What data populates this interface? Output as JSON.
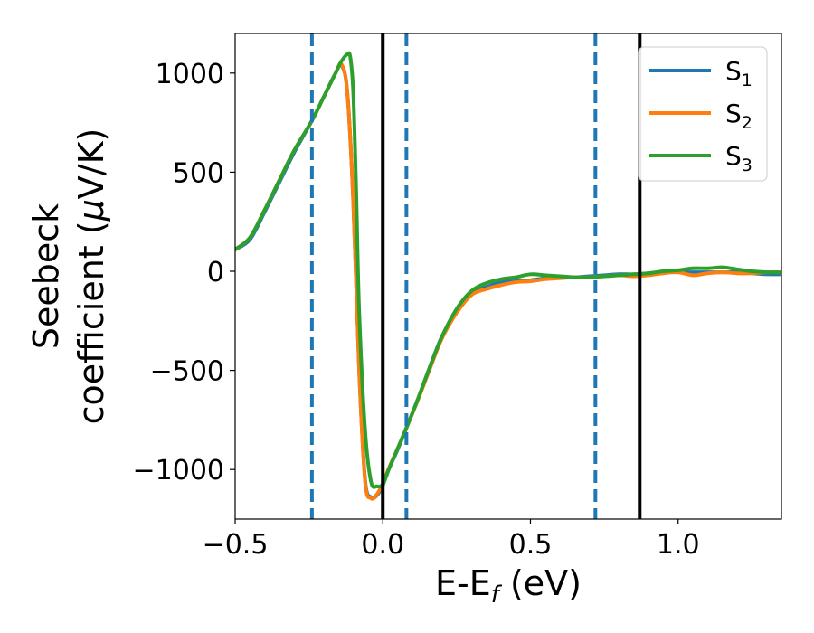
{
  "chart_data": {
    "type": "line",
    "title": "",
    "xlabel": "E-E",
    "xlabel_sub": "f",
    "xlabel_unit": " (eV)",
    "ylabel_line1": "Seebeck",
    "ylabel_line2_prefix": "coefficient  (",
    "ylabel_mu": "μ",
    "ylabel_line2_suffix": "V/K)",
    "xlim": [
      -0.5,
      1.35
    ],
    "ylim": [
      -1250,
      1200
    ],
    "x_ticks": [
      -0.5,
      0.0,
      0.5,
      1.0
    ],
    "x_tick_labels": [
      "−0.5",
      "0.0",
      "0.5",
      "1.0"
    ],
    "y_ticks": [
      -1000,
      -500,
      0,
      500,
      1000
    ],
    "y_tick_labels": [
      "−1000",
      "−500",
      "0",
      "500",
      "1000"
    ],
    "grid": false,
    "legend_position": "top-right",
    "vertical_lines_solid": [
      0.0,
      0.87
    ],
    "vertical_lines_dashed": [
      -0.24,
      0.08,
      0.72
    ],
    "colors": {
      "S1": "#1f77b4",
      "S2": "#ff7f0e",
      "S3": "#2ca02c",
      "solid_line": "#000000",
      "dashed_line": "#1f77b4"
    },
    "series": [
      {
        "name": "S1",
        "label_main": "S",
        "label_sub": "1",
        "color": "#1f77b4",
        "x": [
          -0.5,
          -0.45,
          -0.4,
          -0.35,
          -0.3,
          -0.24,
          -0.2,
          -0.16,
          -0.14,
          -0.12,
          -0.1,
          -0.08,
          -0.06,
          -0.04,
          -0.02,
          0.0,
          0.02,
          0.05,
          0.08,
          0.12,
          0.16,
          0.2,
          0.25,
          0.3,
          0.35,
          0.4,
          0.45,
          0.5,
          0.55,
          0.6,
          0.65,
          0.7,
          0.75,
          0.8,
          0.85,
          0.9,
          0.95,
          1.0,
          1.05,
          1.1,
          1.15,
          1.2,
          1.25,
          1.3,
          1.35
        ],
        "y": [
          110,
          160,
          300,
          450,
          600,
          760,
          880,
          1000,
          1040,
          900,
          350,
          -500,
          -1050,
          -1140,
          -1130,
          -1080,
          -1000,
          -900,
          -790,
          -640,
          -480,
          -330,
          -200,
          -110,
          -80,
          -55,
          -50,
          -45,
          -35,
          -30,
          -30,
          -25,
          -20,
          -15,
          -15,
          -10,
          -5,
          -5,
          -5,
          -5,
          -5,
          -5,
          -10,
          -15,
          -15
        ]
      },
      {
        "name": "S2",
        "label_main": "S",
        "label_sub": "2",
        "color": "#ff7f0e",
        "x": [
          -0.5,
          -0.45,
          -0.4,
          -0.35,
          -0.3,
          -0.24,
          -0.2,
          -0.16,
          -0.14,
          -0.12,
          -0.1,
          -0.08,
          -0.06,
          -0.04,
          -0.02,
          0.0,
          0.02,
          0.05,
          0.08,
          0.12,
          0.16,
          0.2,
          0.25,
          0.3,
          0.35,
          0.4,
          0.45,
          0.5,
          0.55,
          0.6,
          0.65,
          0.7,
          0.75,
          0.8,
          0.85,
          0.9,
          0.95,
          1.0,
          1.05,
          1.1,
          1.15,
          1.2,
          1.25,
          1.3,
          1.35
        ],
        "y": [
          110,
          170,
          310,
          460,
          610,
          760,
          880,
          1000,
          1045,
          900,
          350,
          -500,
          -1060,
          -1145,
          -1125,
          -1070,
          -995,
          -895,
          -790,
          -645,
          -490,
          -340,
          -210,
          -120,
          -90,
          -70,
          -55,
          -50,
          -40,
          -35,
          -30,
          -30,
          -25,
          -20,
          -25,
          -20,
          -10,
          -5,
          -20,
          -10,
          -5,
          -10,
          -10,
          -5,
          -5
        ]
      },
      {
        "name": "S3",
        "label_main": "S",
        "label_sub": "3",
        "color": "#2ca02c",
        "x": [
          -0.5,
          -0.45,
          -0.4,
          -0.35,
          -0.3,
          -0.24,
          -0.2,
          -0.16,
          -0.14,
          -0.12,
          -0.11,
          -0.1,
          -0.09,
          -0.08,
          -0.06,
          -0.04,
          -0.02,
          0.0,
          0.02,
          0.05,
          0.08,
          0.12,
          0.16,
          0.2,
          0.25,
          0.3,
          0.35,
          0.4,
          0.45,
          0.5,
          0.55,
          0.6,
          0.65,
          0.7,
          0.75,
          0.8,
          0.85,
          0.9,
          0.95,
          1.0,
          1.05,
          1.1,
          1.15,
          1.2,
          1.25,
          1.3,
          1.35
        ],
        "y": [
          110,
          170,
          310,
          460,
          610,
          760,
          880,
          1000,
          1060,
          1095,
          1080,
          900,
          400,
          -200,
          -800,
          -1060,
          -1085,
          -1075,
          -1000,
          -895,
          -790,
          -640,
          -480,
          -330,
          -190,
          -100,
          -60,
          -40,
          -30,
          -15,
          -20,
          -25,
          -30,
          -30,
          -25,
          -20,
          -15,
          -10,
          0,
          5,
          15,
          15,
          20,
          10,
          0,
          -5,
          -5
        ]
      }
    ]
  }
}
